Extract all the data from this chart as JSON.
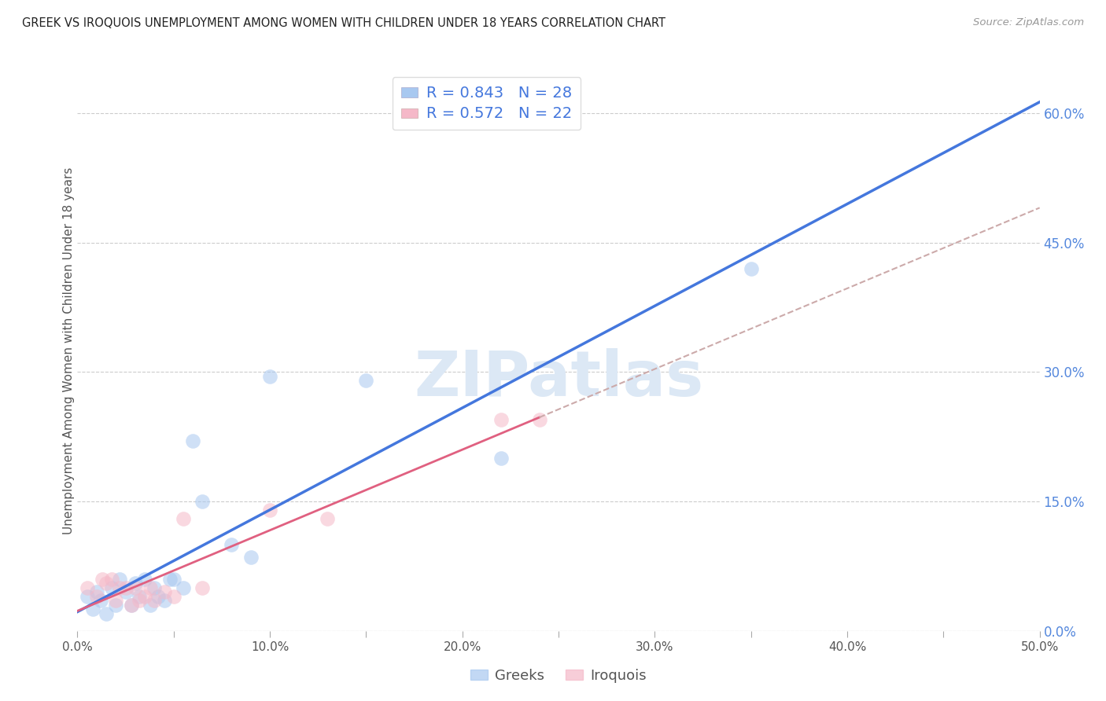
{
  "title": "GREEK VS IROQUOIS UNEMPLOYMENT AMONG WOMEN WITH CHILDREN UNDER 18 YEARS CORRELATION CHART",
  "source": "Source: ZipAtlas.com",
  "ylabel": "Unemployment Among Women with Children Under 18 years",
  "xlim": [
    0.0,
    0.5
  ],
  "ylim": [
    0.0,
    0.65
  ],
  "yticks": [
    0.0,
    0.15,
    0.3,
    0.45,
    0.6
  ],
  "ytick_labels_right": [
    "0.0%",
    "15.0%",
    "30.0%",
    "45.0%",
    "60.0%"
  ],
  "xticks": [
    0.0,
    0.05,
    0.1,
    0.15,
    0.2,
    0.25,
    0.3,
    0.35,
    0.4,
    0.45,
    0.5
  ],
  "xtick_labels": [
    "0.0%",
    "",
    "10.0%",
    "",
    "20.0%",
    "",
    "30.0%",
    "",
    "40.0%",
    "",
    "50.0%"
  ],
  "greek_R": 0.843,
  "greek_N": 28,
  "iroquois_R": 0.572,
  "iroquois_N": 22,
  "greek_color": "#a8c8f0",
  "iroquois_color": "#f5b8c8",
  "greek_line_color": "#4477dd",
  "iroquois_line_color": "#e06080",
  "iroquois_line_dashed_color": "#ccaaaa",
  "watermark": "ZIPatlas",
  "watermark_color": "#dce8f5",
  "background_color": "#ffffff",
  "grid_color": "#cccccc",
  "right_axis_color": "#5588dd",
  "greek_x": [
    0.005,
    0.008,
    0.01,
    0.012,
    0.015,
    0.018,
    0.02,
    0.022,
    0.025,
    0.028,
    0.03,
    0.032,
    0.035,
    0.038,
    0.04,
    0.042,
    0.045,
    0.048,
    0.05,
    0.055,
    0.06,
    0.065,
    0.08,
    0.09,
    0.1,
    0.15,
    0.22,
    0.35
  ],
  "greek_y": [
    0.04,
    0.025,
    0.045,
    0.035,
    0.02,
    0.05,
    0.03,
    0.06,
    0.045,
    0.03,
    0.055,
    0.04,
    0.06,
    0.03,
    0.05,
    0.04,
    0.035,
    0.06,
    0.06,
    0.05,
    0.22,
    0.15,
    0.1,
    0.085,
    0.295,
    0.29,
    0.2,
    0.42
  ],
  "iroquois_x": [
    0.005,
    0.01,
    0.013,
    0.015,
    0.018,
    0.02,
    0.022,
    0.025,
    0.028,
    0.03,
    0.032,
    0.035,
    0.038,
    0.04,
    0.045,
    0.05,
    0.055,
    0.065,
    0.1,
    0.13,
    0.22,
    0.24
  ],
  "iroquois_y": [
    0.05,
    0.04,
    0.06,
    0.055,
    0.06,
    0.035,
    0.05,
    0.05,
    0.03,
    0.05,
    0.035,
    0.04,
    0.05,
    0.035,
    0.045,
    0.04,
    0.13,
    0.05,
    0.14,
    0.13,
    0.245,
    0.245
  ]
}
